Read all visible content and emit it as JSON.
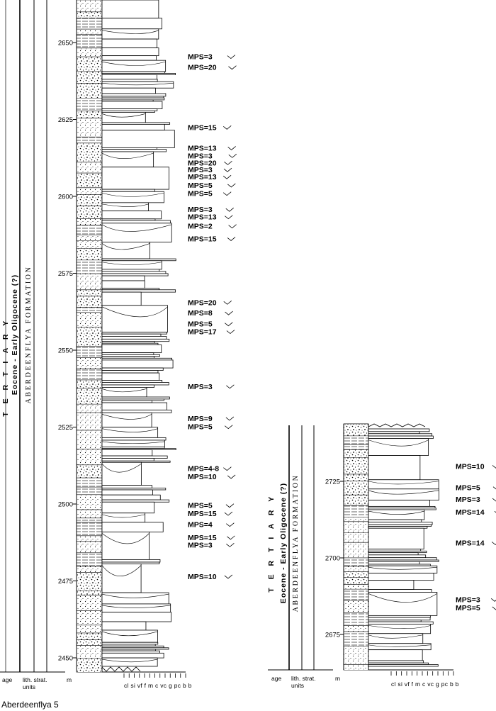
{
  "figure": {
    "caption": "Aberdeenflya 5"
  },
  "left_column": {
    "age": "T E R T I A R Y",
    "epoch": "Eocene - Early Oligocene (?)",
    "formation": "ABERDEENFLYA FORMATION",
    "footer": {
      "age": "age",
      "lith_strat": "lith. strat.",
      "units": "units",
      "m": "m"
    },
    "grain_size_scale": "cl si vf  f  m c vc g  pc b b",
    "depth_ticks": [
      "2650",
      "2625",
      "2600",
      "2575",
      "2550",
      "2525",
      "2500",
      "2475",
      "2450"
    ],
    "depth_values": [
      2650,
      2625,
      2600,
      2575,
      2550,
      2525,
      2500,
      2475,
      2450
    ],
    "mps_labels": [
      {
        "text": "MPS=3",
        "depth": 2645.5
      },
      {
        "text": "MPS=20",
        "depth": 2642
      },
      {
        "text": "MPS=15",
        "depth": 2622.5
      },
      {
        "text": "MPS=13",
        "depth": 2615.8
      },
      {
        "text": "MPS=3",
        "depth": 2613.3
      },
      {
        "text": "MPS=20",
        "depth": 2611
      },
      {
        "text": "MPS=3",
        "depth": 2608.7
      },
      {
        "text": "MPS=13",
        "depth": 2606.4
      },
      {
        "text": "MPS=5",
        "depth": 2603.7
      },
      {
        "text": "MPS=5",
        "depth": 2601
      },
      {
        "text": "MPS=3",
        "depth": 2595.8
      },
      {
        "text": "MPS=13",
        "depth": 2593.4
      },
      {
        "text": "MPS=2",
        "depth": 2590.4
      },
      {
        "text": "MPS=15",
        "depth": 2586.3
      },
      {
        "text": "MPS=20",
        "depth": 2565.6
      },
      {
        "text": "MPS=8",
        "depth": 2562.2
      },
      {
        "text": "MPS=5",
        "depth": 2558.6
      },
      {
        "text": "MPS=17",
        "depth": 2556.1
      },
      {
        "text": "MPS=3",
        "depth": 2538.3
      },
      {
        "text": "MPS=9",
        "depth": 2527.9
      },
      {
        "text": "MPS=5",
        "depth": 2525.2
      },
      {
        "text": "MPS=4-8",
        "depth": 2511.6
      },
      {
        "text": "MPS=10",
        "depth": 2509
      },
      {
        "text": "MPS=5",
        "depth": 2499.6
      },
      {
        "text": "MPS=15",
        "depth": 2497
      },
      {
        "text": "MPS=4",
        "depth": 2493.4
      },
      {
        "text": "MPS=15",
        "depth": 2489.2
      },
      {
        "text": "MPS=3",
        "depth": 2486.8
      },
      {
        "text": "MPS=10",
        "depth": 2476.5
      }
    ]
  },
  "right_column": {
    "age": "T E R T I A R Y",
    "epoch": "Eocene - Early Oligocene (?)",
    "formation": "ABERDEENFLYA FORMATION",
    "footer": {
      "age": "age",
      "lith_strat": "lith. strat.",
      "units": "units",
      "m": "m"
    },
    "grain_size_scale": "cl si vf  f  m c vc g  pc b b",
    "depth_ticks": [
      "2725",
      "2700",
      "2675"
    ],
    "depth_values": [
      2725,
      2700,
      2675
    ],
    "mps_labels": [
      {
        "text": "MPS=10",
        "depth": 2730
      },
      {
        "text": "MPS=5",
        "depth": 2723
      },
      {
        "text": "MPS=3",
        "depth": 2719.2
      },
      {
        "text": "MPS=14",
        "depth": 2715
      },
      {
        "text": "MPS=14",
        "depth": 2705
      },
      {
        "text": "MPS=3",
        "depth": 2686.5
      },
      {
        "text": "MPS=5",
        "depth": 2683.8
      }
    ]
  }
}
